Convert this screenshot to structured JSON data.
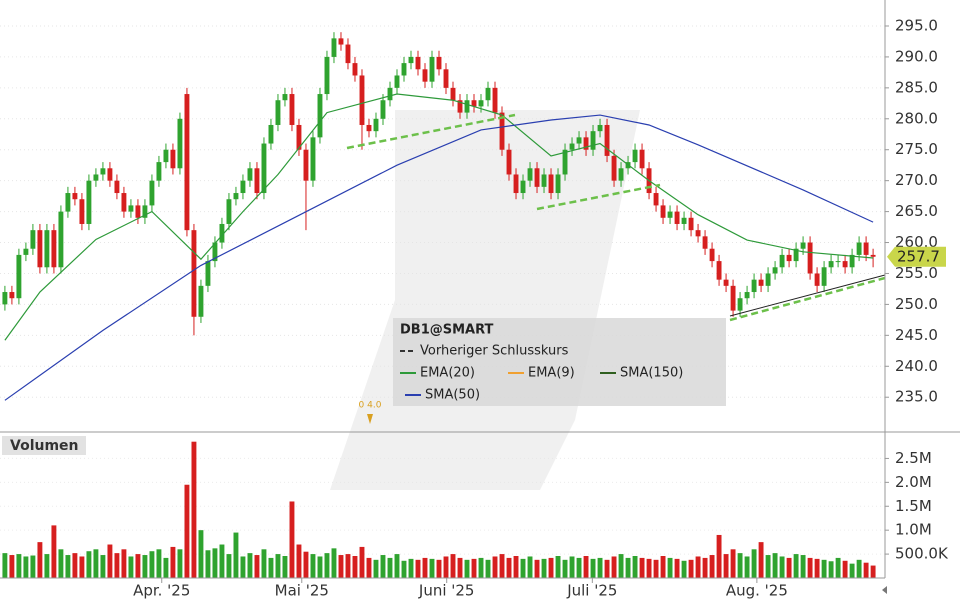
{
  "chart_data": [
    {
      "type": "candlestick",
      "legend_title": "DB1@SMART",
      "reference_line": {
        "name": "Vorheriger Schlusskurs"
      },
      "annotation": "0 4.0",
      "up_color": "#2fa32f",
      "down_color": "#d61f1f",
      "xlim": [
        -0.7,
        125.7
      ],
      "ylim": [
        229.7,
        299.2
      ],
      "yticks": [
        {
          "value": 235,
          "label": "235.0"
        },
        {
          "value": 240,
          "label": "240.0"
        },
        {
          "value": 245,
          "label": "245.0"
        },
        {
          "value": 250,
          "label": "250.0"
        },
        {
          "value": 255,
          "label": "255.0"
        },
        {
          "value": 260,
          "label": "260.0"
        },
        {
          "value": 265,
          "label": "265.0"
        },
        {
          "value": 270,
          "label": "270.0"
        },
        {
          "value": 275,
          "label": "275.0"
        },
        {
          "value": 280,
          "label": "280.0"
        },
        {
          "value": 285,
          "label": "285.0"
        },
        {
          "value": 290,
          "label": "290.0"
        },
        {
          "value": 295,
          "label": "295.0"
        }
      ],
      "grid": true,
      "open": [
        250,
        252,
        251,
        258,
        259,
        262,
        256,
        262,
        256,
        265,
        268,
        267,
        263,
        270,
        271,
        272,
        270,
        268,
        265,
        266,
        264,
        266,
        270,
        273,
        275,
        272,
        284,
        262,
        248,
        253,
        257,
        260,
        263,
        267,
        268,
        270,
        272,
        268,
        276,
        279,
        283,
        284,
        279,
        275,
        270,
        277,
        284,
        290,
        293,
        292,
        289,
        287,
        279,
        278,
        280,
        283,
        285,
        287,
        289,
        290,
        288,
        286,
        290,
        288,
        285,
        283,
        281,
        283,
        282,
        283,
        285,
        281,
        275,
        271,
        268,
        270,
        272,
        269,
        271,
        268,
        271,
        275,
        276,
        277,
        275,
        278,
        279,
        274,
        270,
        272,
        273,
        275,
        272,
        268,
        266,
        264,
        265,
        263,
        264,
        262,
        261,
        259,
        257,
        254,
        253,
        249,
        251,
        252,
        254,
        253,
        255,
        256,
        258,
        257,
        259,
        260,
        255,
        253,
        256,
        257,
        257,
        256,
        258,
        260,
        258
      ],
      "high": [
        253,
        253,
        259,
        260,
        263,
        263,
        263,
        263,
        266,
        269,
        269,
        268,
        271,
        272,
        273,
        273,
        271,
        269,
        267,
        267,
        267,
        271,
        274,
        276,
        276,
        281,
        285,
        263,
        254,
        258,
        261,
        264,
        268,
        269,
        271,
        273,
        273,
        277,
        280,
        284,
        285,
        285,
        280,
        276,
        278,
        285,
        291,
        294,
        294,
        293,
        290,
        288,
        280,
        281,
        284,
        286,
        288,
        290,
        291,
        291,
        289,
        291,
        291,
        289,
        286,
        284,
        284,
        284,
        284,
        286,
        286,
        282,
        276,
        272,
        271,
        273,
        273,
        272,
        272,
        272,
        276,
        277,
        278,
        278,
        279,
        280,
        280,
        275,
        273,
        274,
        276,
        276,
        273,
        269,
        267,
        266,
        266,
        265,
        265,
        263,
        262,
        260,
        258,
        255,
        254,
        252,
        253,
        255,
        255,
        256,
        257,
        259,
        259,
        260,
        261,
        261,
        256,
        257,
        258,
        258,
        258,
        259,
        261,
        261,
        259
      ],
      "low": [
        249,
        250,
        250,
        257,
        258,
        255,
        255,
        255,
        255,
        264,
        266,
        262,
        262,
        269,
        270,
        269,
        267,
        264,
        264,
        263,
        263,
        265,
        269,
        272,
        271,
        271,
        261,
        245,
        247,
        252,
        256,
        259,
        262,
        266,
        267,
        269,
        267,
        267,
        275,
        278,
        282,
        278,
        274,
        262,
        269,
        276,
        283,
        289,
        291,
        288,
        286,
        275,
        277,
        277,
        279,
        282,
        284,
        286,
        288,
        287,
        285,
        285,
        287,
        284,
        282,
        280,
        280,
        281,
        281,
        282,
        280,
        274,
        270,
        267,
        267,
        269,
        268,
        268,
        267,
        267,
        270,
        274,
        275,
        274,
        274,
        277,
        273,
        269,
        269,
        271,
        272,
        271,
        267,
        265,
        263,
        263,
        262,
        262,
        261,
        260,
        258,
        256,
        253,
        252,
        248,
        248,
        250,
        251,
        252,
        252,
        254,
        255,
        256,
        256,
        258,
        254,
        252,
        252,
        255,
        256,
        255,
        255,
        257,
        257,
        256
      ],
      "close": [
        252,
        251,
        258,
        259,
        262,
        256,
        262,
        256,
        265,
        268,
        267,
        263,
        270,
        271,
        272,
        270,
        268,
        265,
        266,
        264,
        266,
        270,
        273,
        275,
        272,
        280,
        262,
        248,
        253,
        257,
        260,
        263,
        267,
        268,
        270,
        272,
        268,
        276,
        279,
        283,
        284,
        279,
        275,
        270,
        277,
        284,
        290,
        293,
        292,
        289,
        287,
        279,
        278,
        280,
        283,
        285,
        287,
        289,
        290,
        288,
        286,
        290,
        288,
        285,
        283,
        281,
        283,
        282,
        283,
        285,
        281,
        275,
        271,
        268,
        270,
        272,
        269,
        271,
        268,
        271,
        275,
        276,
        277,
        275,
        278,
        279,
        274,
        270,
        272,
        273,
        275,
        272,
        268,
        266,
        264,
        265,
        263,
        264,
        262,
        261,
        259,
        257,
        254,
        253,
        249,
        251,
        252,
        254,
        253,
        255,
        256,
        258,
        257,
        259,
        260,
        255,
        253,
        256,
        257,
        257,
        256,
        258,
        260,
        258,
        257.7
      ],
      "series": [
        {
          "name": "EMA(20)",
          "color": "#2e9a3a",
          "x": [
            0,
            5,
            13,
            21,
            28,
            34,
            39,
            46,
            56,
            64,
            71,
            78,
            85,
            92,
            99,
            106,
            114,
            124
          ],
          "values": [
            244.2,
            252,
            260.5,
            265,
            257.3,
            265,
            271,
            281,
            284,
            283,
            280.6,
            274,
            276,
            270,
            264.5,
            260.4,
            258.5,
            257.5
          ]
        },
        {
          "name": "EMA(9)",
          "color": "#f0a030",
          "x": [],
          "values": []
        },
        {
          "name": "SMA(150)",
          "color": "#2f5f1f",
          "x": [],
          "values": []
        },
        {
          "name": "SMA(50)",
          "color": "#2a3fb0",
          "x": [
            0,
            14,
            28,
            42,
            56,
            68,
            78,
            85,
            92,
            99,
            114,
            124
          ],
          "values": [
            234.5,
            245.8,
            256.3,
            264.4,
            272.5,
            278.2,
            279.8,
            280.6,
            279,
            275.8,
            268.5,
            263.3
          ]
        }
      ]
    },
    {
      "type": "volume",
      "title": "Volumen",
      "xlim": [
        -0.7,
        125.7
      ],
      "ylim": [
        0,
        2990000
      ],
      "yticks": [
        {
          "value": 500000,
          "label": "500.0K"
        },
        {
          "value": 1000000,
          "label": "1.0M"
        },
        {
          "value": 1500000,
          "label": "1.5M"
        },
        {
          "value": 2000000,
          "label": "2.0M"
        },
        {
          "value": 2500000,
          "label": "2.5M"
        }
      ],
      "xticks": [
        {
          "value": 22.4,
          "label": "Apr. '25"
        },
        {
          "value": 42.4,
          "label": "Mai '25"
        },
        {
          "value": 63.1,
          "label": "Juni '25"
        },
        {
          "value": 83.9,
          "label": "Juli '25"
        },
        {
          "value": 107.4,
          "label": "Aug. '25"
        }
      ],
      "values": [
        520000,
        480000,
        500000,
        450000,
        470000,
        750000,
        500000,
        1100000,
        600000,
        480000,
        520000,
        450000,
        560000,
        600000,
        480000,
        700000,
        520000,
        600000,
        450000,
        500000,
        480000,
        560000,
        600000,
        420000,
        650000,
        600000,
        1950000,
        2850000,
        1000000,
        580000,
        620000,
        700000,
        500000,
        950000,
        450000,
        520000,
        480000,
        600000,
        420000,
        500000,
        460000,
        1600000,
        700000,
        550000,
        500000,
        450000,
        520000,
        620000,
        480000,
        500000,
        460000,
        650000,
        420000,
        380000,
        480000,
        420000,
        500000,
        360000,
        400000,
        380000,
        420000,
        400000,
        380000,
        450000,
        500000,
        420000,
        380000,
        400000,
        420000,
        380000,
        450000,
        500000,
        420000,
        460000,
        400000,
        450000,
        380000,
        400000,
        420000,
        460000,
        380000,
        450000,
        420000,
        460000,
        400000,
        420000,
        380000,
        450000,
        500000,
        420000,
        460000,
        420000,
        400000,
        380000,
        460000,
        420000,
        400000,
        360000,
        380000,
        450000,
        420000,
        480000,
        900000,
        500000,
        600000,
        520000,
        450000,
        600000,
        750000,
        480000,
        520000,
        450000,
        420000,
        500000,
        480000,
        420000,
        400000,
        380000,
        350000,
        420000,
        360000,
        300000,
        380000,
        320000,
        260000
      ]
    }
  ]
}
